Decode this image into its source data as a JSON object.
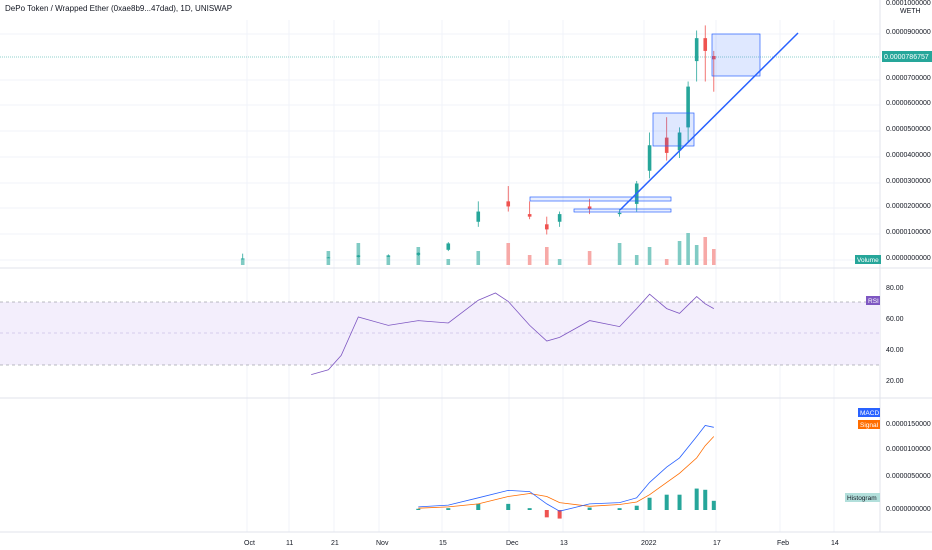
{
  "header": {
    "title": "DePo Token / Wrapped Ether (0xae8b9...47dad), 1D, UNISWAP"
  },
  "price_axis": {
    "quote_currency": "WETH",
    "ticks": [
      "0.0001000000",
      "0.0000900000",
      "0.0000700000",
      "0.0000600000",
      "0.0000500000",
      "0.0000400000",
      "0.0000300000",
      "0.0000200000",
      "0.0000100000",
      "0.0000000000"
    ],
    "current_price": "0.0000786757"
  },
  "volume_pane": {
    "label": "Volume"
  },
  "rsi_pane": {
    "label": "RSI",
    "ticks": [
      "80.00",
      "60.00",
      "40.00",
      "20.00"
    ]
  },
  "macd_pane": {
    "macd_label": "MACD",
    "signal_label": "Signal",
    "histogram_label": "Histogram",
    "ticks": [
      "0.0000150000",
      "0.0000100000",
      "0.0000050000",
      "0.0000000000"
    ]
  },
  "time_axis": {
    "labels": [
      "Oct",
      "11",
      "21",
      "Nov",
      "15",
      "Dec",
      "13",
      "2022",
      "17",
      "Feb",
      "14"
    ]
  },
  "colors": {
    "up": "#26a69a",
    "down": "#ef5350",
    "volume_up": "#80cbc4",
    "volume_down": "#f7a9a7",
    "rsi_line": "#7e57c2",
    "rsi_band": "#f3eefc",
    "macd_line": "#2962ff",
    "signal_line": "#ff6d00",
    "trendline": "#2962ff",
    "grid": "#f0f3fa"
  },
  "chart_data": [
    {
      "type": "candlestick",
      "title": "DePo Token / Wrapped Ether (0xae8b9...47dad), 1D, UNISWAP",
      "y_unit": "WETH",
      "ylim": [
        0,
        0.0001
      ],
      "x_range": [
        "2021-09-26",
        "2022-02-28"
      ],
      "ohlc": [
        [
          "2021-09-30",
          6e-07,
          2.5e-06,
          2e-07,
          6e-07
        ],
        [
          "2021-10-20",
          1e-06,
          1.2e-06,
          8e-07,
          1e-06
        ],
        [
          "2021-10-27",
          1.2e-06,
          2e-06,
          1e-06,
          1.8e-06
        ],
        [
          "2021-11-03",
          1.5e-06,
          2.2e-06,
          1.2e-06,
          1.6e-06
        ],
        [
          "2021-11-10",
          2e-06,
          3e-06,
          1.6e-06,
          2.8e-06
        ],
        [
          "2021-11-17",
          4e-06,
          7e-06,
          3.5e-06,
          6.5e-06
        ],
        [
          "2021-11-24",
          1.5e-05,
          2.3e-05,
          1.3e-05,
          1.9e-05
        ],
        [
          "2021-12-01",
          2.3e-05,
          2.9e-05,
          1.9e-05,
          2.1e-05
        ],
        [
          "2021-12-06",
          1.8e-05,
          2.3e-05,
          1.6e-05,
          1.7e-05
        ],
        [
          "2021-12-10",
          1.4e-05,
          1.7e-05,
          1e-05,
          1.2e-05
        ],
        [
          "2021-12-13",
          1.5e-05,
          1.9e-05,
          1.3e-05,
          1.8e-05
        ],
        [
          "2021-12-20",
          2.1e-05,
          2.4e-05,
          1.8e-05,
          2e-05
        ],
        [
          "2021-12-27",
          1.8e-05,
          2e-05,
          1.7e-05,
          1.85e-05
        ],
        [
          "2021-12-31",
          2.2e-05,
          3.1e-05,
          1.9e-05,
          3e-05
        ],
        [
          "2022-01-03",
          3.5e-05,
          5e-05,
          3.2e-05,
          4.5e-05
        ],
        [
          "2022-01-07",
          4.8e-05,
          5.6e-05,
          3.9e-05,
          4.2e-05
        ],
        [
          "2022-01-10",
          4.3e-05,
          5.2e-05,
          4e-05,
          5e-05
        ],
        [
          "2022-01-12",
          5.2e-05,
          7e-05,
          4.6e-05,
          6.8e-05
        ],
        [
          "2022-01-14",
          7.8e-05,
          9e-05,
          7e-05,
          8.7e-05
        ],
        [
          "2022-01-16",
          8.7e-05,
          9.2e-05,
          7e-05,
          8.2e-05
        ],
        [
          "2022-01-18",
          8e-05,
          8.2e-05,
          6.6e-05,
          7.87e-05
        ]
      ]
    },
    {
      "type": "line",
      "title": "RSI",
      "ylim": [
        10,
        90
      ],
      "x": [
        "2021-10-16",
        "2021-10-20",
        "2021-10-23",
        "2021-10-27",
        "2021-11-03",
        "2021-11-10",
        "2021-11-17",
        "2021-11-24",
        "2021-11-28",
        "2021-12-01",
        "2021-12-06",
        "2021-12-10",
        "2021-12-13",
        "2021-12-20",
        "2021-12-27",
        "2021-12-31",
        "2022-01-03",
        "2022-01-07",
        "2022-01-10",
        "2022-01-14",
        "2022-01-16",
        "2022-01-18"
      ],
      "values": [
        17,
        21,
        33,
        65,
        58,
        62,
        60,
        79,
        85,
        78,
        58,
        45,
        48,
        62,
        57,
        72,
        84,
        72,
        68,
        82,
        76,
        72
      ]
    },
    {
      "type": "line",
      "title": "MACD",
      "ylim": [
        -2e-06,
        1.6e-05
      ],
      "x": [
        "2021-11-10",
        "2021-11-17",
        "2021-11-24",
        "2021-12-01",
        "2021-12-06",
        "2021-12-10",
        "2021-12-13",
        "2021-12-20",
        "2021-12-27",
        "2021-12-31",
        "2022-01-03",
        "2022-01-07",
        "2022-01-10",
        "2022-01-14",
        "2022-01-16",
        "2022-01-18"
      ],
      "series": [
        {
          "name": "MACD",
          "values": [
            5e-07,
            8e-07,
            2e-06,
            3.2e-06,
            3e-06,
            1e-06,
            -2e-07,
            1e-06,
            1.2e-06,
            2e-06,
            4.5e-06,
            7e-06,
            8.5e-06,
            1.2e-05,
            1.38e-05,
            1.35e-05
          ]
        },
        {
          "name": "Signal",
          "values": [
            3e-07,
            5e-07,
            1e-06,
            2.2e-06,
            2.7e-06,
            2.2e-06,
            1.2e-06,
            6e-07,
            9e-07,
            1.3e-06,
            2.5e-06,
            4.5e-06,
            6e-06,
            8.5e-06,
            1.05e-05,
            1.2e-05
          ]
        },
        {
          "name": "Histogram",
          "values": [
            2e-07,
            3e-07,
            1e-06,
            1e-06,
            3e-07,
            -1.2e-06,
            -1.4e-06,
            4e-07,
            3e-07,
            7e-07,
            2e-06,
            2.5e-06,
            2.5e-06,
            3.5e-06,
            3.3e-06,
            1.5e-06
          ]
        }
      ]
    }
  ]
}
